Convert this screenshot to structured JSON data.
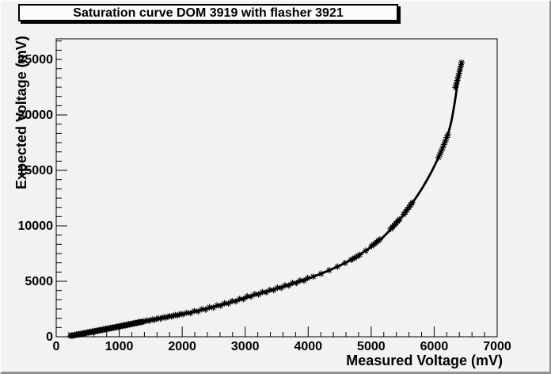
{
  "title": {
    "text": "Saturation curve DOM 3919 with flasher 3921"
  },
  "chart_data": {
    "type": "scatter",
    "title": "Saturation curve DOM 3919 with flasher 3921",
    "xlabel": "Measured Voltage (mV)",
    "ylabel": "Expected Voltage (mV)",
    "xlim": [
      0,
      7000
    ],
    "ylim": [
      0,
      26860
    ],
    "x_ticks": [
      0,
      1000,
      2000,
      3000,
      4000,
      5000,
      6000,
      7000
    ],
    "y_ticks": [
      0,
      5000,
      10000,
      15000,
      20000,
      25000
    ],
    "x_minor_divisions": 5,
    "y_minor_divisions": 6,
    "grid": false,
    "legend": "none",
    "marker": "asterisk-8-arm",
    "marker_color": "#000000",
    "line_color": "#000000",
    "points": [
      [
        230,
        75
      ],
      [
        248,
        130
      ],
      [
        266,
        110
      ],
      [
        284,
        160
      ],
      [
        302,
        140
      ],
      [
        320,
        210
      ],
      [
        338,
        185
      ],
      [
        356,
        240
      ],
      [
        374,
        215
      ],
      [
        392,
        270
      ],
      [
        410,
        250
      ],
      [
        428,
        320
      ],
      [
        446,
        290
      ],
      [
        464,
        350
      ],
      [
        482,
        330
      ],
      [
        500,
        400
      ],
      [
        518,
        370
      ],
      [
        536,
        440
      ],
      [
        554,
        410
      ],
      [
        572,
        470
      ],
      [
        590,
        445
      ],
      [
        608,
        520
      ],
      [
        626,
        490
      ],
      [
        644,
        560
      ],
      [
        662,
        530
      ],
      [
        680,
        600
      ],
      [
        698,
        565
      ],
      [
        716,
        640
      ],
      [
        734,
        605
      ],
      [
        752,
        680
      ],
      [
        770,
        645
      ],
      [
        788,
        720
      ],
      [
        806,
        685
      ],
      [
        824,
        760
      ],
      [
        842,
        725
      ],
      [
        860,
        800
      ],
      [
        878,
        765
      ],
      [
        896,
        840
      ],
      [
        914,
        805
      ],
      [
        932,
        880
      ],
      [
        950,
        850
      ],
      [
        968,
        920
      ],
      [
        986,
        890
      ],
      [
        1004,
        960
      ],
      [
        1022,
        930
      ],
      [
        1040,
        1000
      ],
      [
        1058,
        975
      ],
      [
        1076,
        1040
      ],
      [
        1094,
        1015
      ],
      [
        1112,
        1080
      ],
      [
        1130,
        1060
      ],
      [
        1148,
        1125
      ],
      [
        1166,
        1100
      ],
      [
        1184,
        1165
      ],
      [
        1202,
        1140
      ],
      [
        1220,
        1205
      ],
      [
        1238,
        1185
      ],
      [
        1256,
        1250
      ],
      [
        1274,
        1225
      ],
      [
        1292,
        1290
      ],
      [
        1310,
        1270
      ],
      [
        1328,
        1335
      ],
      [
        1346,
        1310
      ],
      [
        1364,
        1375
      ],
      [
        1382,
        1355
      ],
      [
        1412,
        1410
      ],
      [
        1442,
        1465
      ],
      [
        1472,
        1435
      ],
      [
        1502,
        1510
      ],
      [
        1532,
        1560
      ],
      [
        1562,
        1530
      ],
      [
        1592,
        1610
      ],
      [
        1622,
        1660
      ],
      [
        1652,
        1630
      ],
      [
        1682,
        1710
      ],
      [
        1712,
        1760
      ],
      [
        1742,
        1730
      ],
      [
        1772,
        1810
      ],
      [
        1802,
        1855
      ],
      [
        1832,
        1825
      ],
      [
        1862,
        1905
      ],
      [
        1892,
        1955
      ],
      [
        1922,
        1925
      ],
      [
        1952,
        2005
      ],
      [
        1982,
        2055
      ],
      [
        2012,
        2030
      ],
      [
        2072,
        2160
      ],
      [
        2132,
        2130
      ],
      [
        2192,
        2320
      ],
      [
        2252,
        2290
      ],
      [
        2312,
        2480
      ],
      [
        2372,
        2450
      ],
      [
        2432,
        2660
      ],
      [
        2492,
        2630
      ],
      [
        2552,
        2830
      ],
      [
        2612,
        2810
      ],
      [
        2672,
        3020
      ],
      [
        2732,
        3000
      ],
      [
        2792,
        3210
      ],
      [
        2852,
        3190
      ],
      [
        2912,
        3410
      ],
      [
        2972,
        3390
      ],
      [
        3032,
        3650
      ],
      [
        3092,
        3630
      ],
      [
        3152,
        3840
      ],
      [
        3212,
        3820
      ],
      [
        3272,
        4030
      ],
      [
        3332,
        4010
      ],
      [
        3392,
        4220
      ],
      [
        3452,
        4210
      ],
      [
        3512,
        4420
      ],
      [
        3572,
        4410
      ],
      [
        3632,
        4630
      ],
      [
        3692,
        4620
      ],
      [
        3752,
        4850
      ],
      [
        3812,
        4840
      ],
      [
        3872,
        5070
      ],
      [
        3932,
        5060
      ],
      [
        3992,
        5290
      ],
      [
        4082,
        5420
      ],
      [
        4205,
        5680
      ],
      [
        4335,
        5990
      ],
      [
        4465,
        6320
      ],
      [
        4585,
        6650
      ],
      [
        4680,
        6930
      ],
      [
        4708,
        7020
      ],
      [
        4736,
        7110
      ],
      [
        4764,
        7200
      ],
      [
        4792,
        7295
      ],
      [
        4820,
        7385
      ],
      [
        4915,
        7760
      ],
      [
        5005,
        8170
      ],
      [
        5032,
        8290
      ],
      [
        5059,
        8410
      ],
      [
        5086,
        8530
      ],
      [
        5113,
        8655
      ],
      [
        5140,
        8780
      ],
      [
        5310,
        9720
      ],
      [
        5338,
        9890
      ],
      [
        5366,
        10060
      ],
      [
        5394,
        10235
      ],
      [
        5422,
        10410
      ],
      [
        5450,
        10590
      ],
      [
        5515,
        11030
      ],
      [
        5543,
        11240
      ],
      [
        5571,
        11455
      ],
      [
        5599,
        11675
      ],
      [
        5627,
        11895
      ],
      [
        5652,
        12090
      ],
      [
        6068,
        16160
      ],
      [
        6090,
        16440
      ],
      [
        6112,
        16730
      ],
      [
        6134,
        17025
      ],
      [
        6156,
        17330
      ],
      [
        6178,
        17640
      ],
      [
        6200,
        17960
      ],
      [
        6218,
        18230
      ],
      [
        6338,
        22480
      ],
      [
        6352,
        22790
      ],
      [
        6366,
        23100
      ],
      [
        6380,
        23415
      ],
      [
        6394,
        23735
      ],
      [
        6408,
        24060
      ],
      [
        6422,
        24390
      ],
      [
        6436,
        24720
      ]
    ],
    "fit_curve": [
      [
        230,
        73
      ],
      [
        800,
        700
      ],
      [
        1400,
        1360
      ],
      [
        2000,
        2020
      ],
      [
        2400,
        2560
      ],
      [
        2800,
        3170
      ],
      [
        3200,
        3858
      ],
      [
        3600,
        4524
      ],
      [
        4000,
        5250
      ],
      [
        4300,
        5915
      ],
      [
        4600,
        6700
      ],
      [
        4900,
        7710
      ],
      [
        5150,
        8775
      ],
      [
        5400,
        10245
      ],
      [
        5600,
        11640
      ],
      [
        5800,
        13300
      ],
      [
        5950,
        14800
      ],
      [
        6080,
        16310
      ],
      [
        6180,
        17660
      ],
      [
        6260,
        19100
      ],
      [
        6320,
        20900
      ],
      [
        6370,
        22800
      ],
      [
        6410,
        23900
      ],
      [
        6435,
        24520
      ]
    ]
  }
}
